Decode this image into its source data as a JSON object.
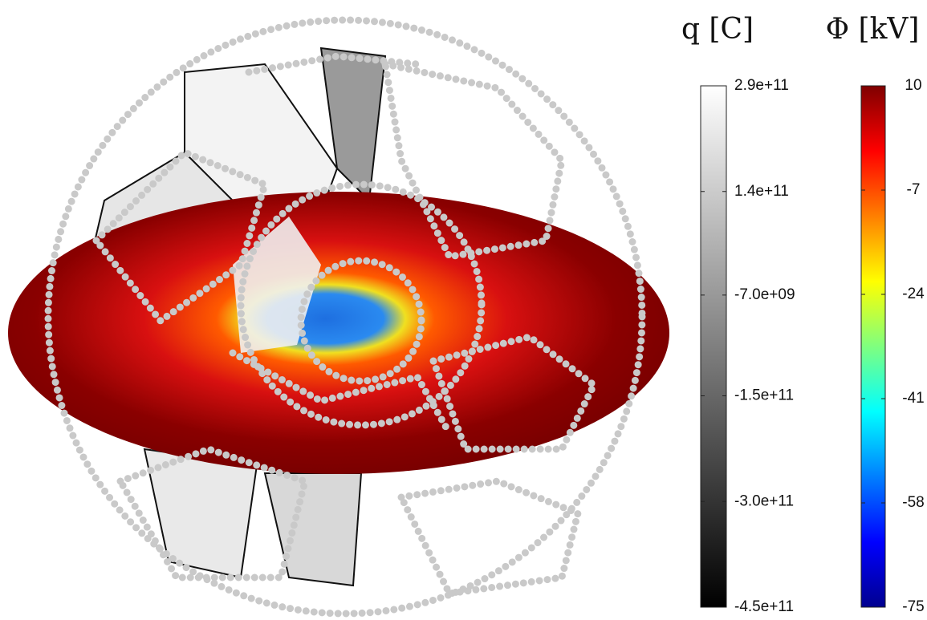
{
  "chart_data": [
    {
      "type": "colorbar",
      "title": "q [C]",
      "ylim": [
        -450000000000,
        290000000000
      ],
      "yticks": [
        {
          "value": 290000000000,
          "label": "2.9e+11"
        },
        {
          "value": 140000000000,
          "label": "1.4e+11"
        },
        {
          "value": -7000000000,
          "label": "-7.0e+09"
        },
        {
          "value": -150000000000,
          "label": "-1.5e+11"
        },
        {
          "value": -300000000000,
          "label": "-3.0e+11"
        },
        {
          "value": -450000000000,
          "label": "-4.5e+11"
        }
      ],
      "colors": [
        "#000000",
        "#ffffff"
      ]
    },
    {
      "type": "colorbar",
      "title": "Φ [kV]",
      "ylim": [
        -75,
        10
      ],
      "yticks": [
        10,
        -7,
        -24,
        -41,
        -58,
        -75
      ],
      "colors": [
        "#00008f",
        "#0000ff",
        "#007fff",
        "#00ffff",
        "#7fff7f",
        "#ffff00",
        "#ff7f00",
        "#ff0000",
        "#7f0000"
      ]
    }
  ]
}
